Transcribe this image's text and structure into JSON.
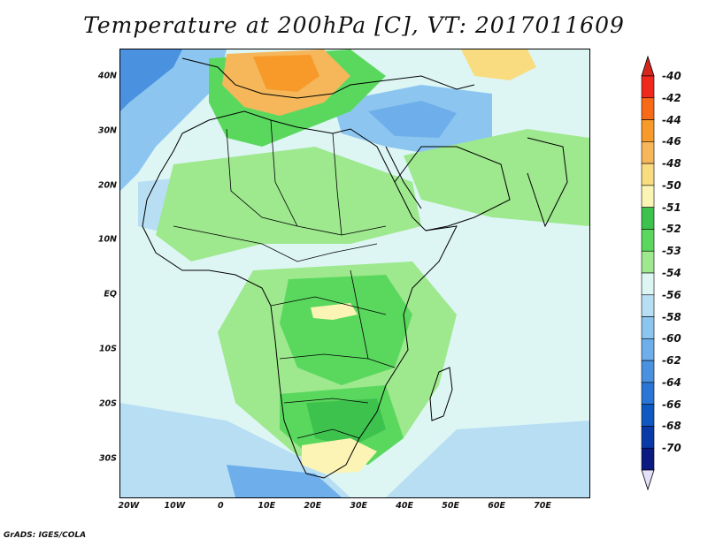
{
  "title": "Temperature at 200hPa [C], VT: 2017011609",
  "credit": "GrADS: IGES/COLA",
  "map": {
    "projection": "lat-lon",
    "lon_range": [
      -22,
      80
    ],
    "lat_range": [
      -37,
      45
    ],
    "lat_ticks": [
      "40N",
      "30N",
      "20N",
      "10N",
      "EQ",
      "10S",
      "20S",
      "30S"
    ],
    "lat_tick_values": [
      40,
      30,
      20,
      10,
      0,
      -10,
      -20,
      -30
    ],
    "lon_ticks": [
      "20W",
      "10W",
      "0",
      "10E",
      "20E",
      "30E",
      "40E",
      "50E",
      "60E",
      "70E"
    ],
    "lon_tick_values": [
      -20,
      -10,
      0,
      10,
      20,
      30,
      40,
      50,
      60,
      70
    ],
    "base_fill": "#ddf6f4",
    "coastline_color": "#000000"
  },
  "colorbar": {
    "levels": [
      "-40",
      "-42",
      "-44",
      "-46",
      "-48",
      "-50",
      "-51",
      "-52",
      "-53",
      "-54",
      "-56",
      "-58",
      "-60",
      "-62",
      "-64",
      "-66",
      "-68",
      "-70"
    ],
    "colors": [
      "#f0281e",
      "#f96a18",
      "#f89a2a",
      "#f5b75a",
      "#fadc80",
      "#fcf4b4",
      "#3ec24e",
      "#5ad85e",
      "#9ee88e",
      "#ddf6f4",
      "#b8def4",
      "#8cc6f0",
      "#6eaeea",
      "#4a92e0",
      "#2a76d6",
      "#0e58c2",
      "#0a3aa8",
      "#0a1a80"
    ],
    "top_arrow_color": "#d4261c",
    "bottom_arrow_color": "#e4e0fa"
  }
}
